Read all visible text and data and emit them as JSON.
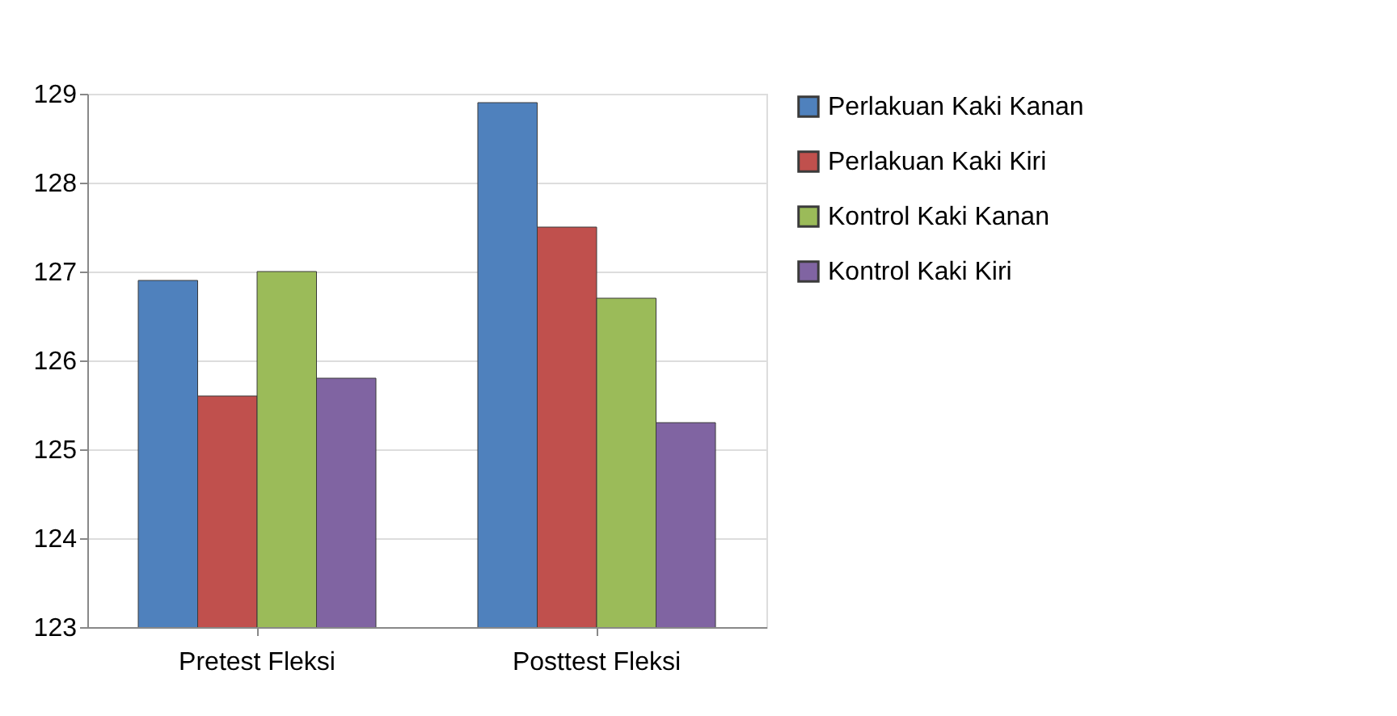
{
  "chart_data": {
    "type": "bar",
    "categories": [
      "Pretest Fleksi",
      "Posttest Fleksi"
    ],
    "series": [
      {
        "name": "Perlakuan Kaki Kanan",
        "color": "#4f81bd",
        "values": [
          126.9,
          128.9
        ]
      },
      {
        "name": "Perlakuan Kaki Kiri",
        "color": "#c0504d",
        "values": [
          125.6,
          127.5
        ]
      },
      {
        "name": "Kontrol Kaki Kanan",
        "color": "#9bbb59",
        "values": [
          127.0,
          126.7
        ]
      },
      {
        "name": "Kontrol Kaki Kiri",
        "color": "#8064a2",
        "values": [
          125.8,
          125.3
        ]
      }
    ],
    "ylim": [
      123,
      129
    ],
    "yticks": [
      123,
      124,
      125,
      126,
      127,
      128,
      129
    ],
    "grid": "y",
    "legend": "right"
  }
}
